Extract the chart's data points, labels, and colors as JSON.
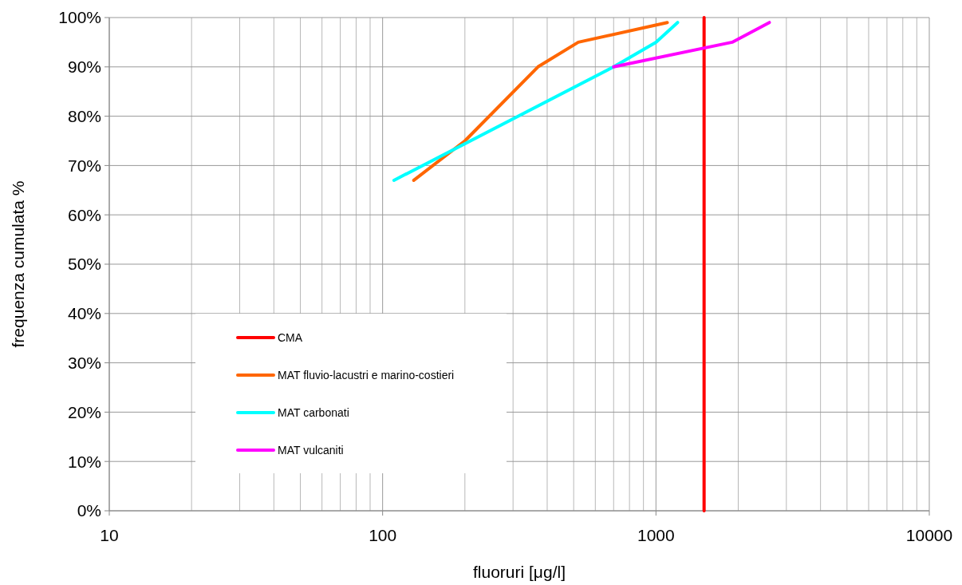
{
  "chart_data": {
    "type": "line",
    "xlabel": "fluoruri [μg/l]",
    "ylabel": "frequenza cumulata %",
    "log": "x",
    "grid": true,
    "legend": "bottom left",
    "line_style": "solid",
    "marker": "none",
    "xlim": [
      10,
      10000
    ],
    "ylim": [
      0,
      100
    ],
    "xticks": [
      10,
      {
        "value": 20,
        "label": null
      },
      {
        "value": 30,
        "label": null
      },
      {
        "value": 40,
        "label": null
      },
      {
        "value": 50,
        "label": null
      },
      {
        "value": 60,
        "label": null
      },
      {
        "value": 70,
        "label": null
      },
      {
        "value": 80,
        "label": null
      },
      {
        "value": 90,
        "label": null
      },
      100,
      {
        "value": 200,
        "label": null
      },
      {
        "value": 300,
        "label": null
      },
      {
        "value": 400,
        "label": null
      },
      {
        "value": 500,
        "label": null
      },
      {
        "value": 600,
        "label": null
      },
      {
        "value": 700,
        "label": null
      },
      {
        "value": 800,
        "label": null
      },
      {
        "value": 900,
        "label": null
      },
      1000,
      {
        "value": 2000,
        "label": null
      },
      {
        "value": 3000,
        "label": null
      },
      {
        "value": 4000,
        "label": null
      },
      {
        "value": 5000,
        "label": null
      },
      {
        "value": 6000,
        "label": null
      },
      {
        "value": 7000,
        "label": null
      },
      {
        "value": 8000,
        "label": null
      },
      {
        "value": 9000,
        "label": null
      },
      10000
    ],
    "yticks": [
      {
        "value": 0,
        "label": "0%"
      },
      {
        "value": 10,
        "label": "10%"
      },
      {
        "value": 20,
        "label": "20%"
      },
      {
        "value": 30,
        "label": "30%"
      },
      {
        "value": 40,
        "label": "40%"
      },
      {
        "value": 50,
        "label": "50%"
      },
      {
        "value": 60,
        "label": "60%"
      },
      {
        "value": 70,
        "label": "70%"
      },
      {
        "value": 80,
        "label": "80%"
      },
      {
        "value": 90,
        "label": "90%"
      },
      {
        "value": 100,
        "label": "100%"
      }
    ],
    "series": [
      {
        "name": "CMA",
        "color": "#ff0000",
        "x": [
          1500,
          1500
        ],
        "values": [
          0,
          100
        ]
      },
      {
        "name": "MAT fluvio-lacustri e marino-costieri",
        "color": "#ff6600",
        "x": [
          130,
          200,
          370,
          520,
          1100
        ],
        "values": [
          67,
          75,
          90,
          95,
          99
        ]
      },
      {
        "name": "MAT carbonati",
        "color": "#00ffff",
        "x": [
          110,
          700,
          1000,
          1200
        ],
        "values": [
          67,
          90,
          95,
          99
        ]
      },
      {
        "name": "MAT vulcaniti",
        "color": "#ff00ff",
        "x": [
          700,
          1900,
          2600
        ],
        "values": [
          90,
          95,
          99
        ]
      }
    ]
  }
}
